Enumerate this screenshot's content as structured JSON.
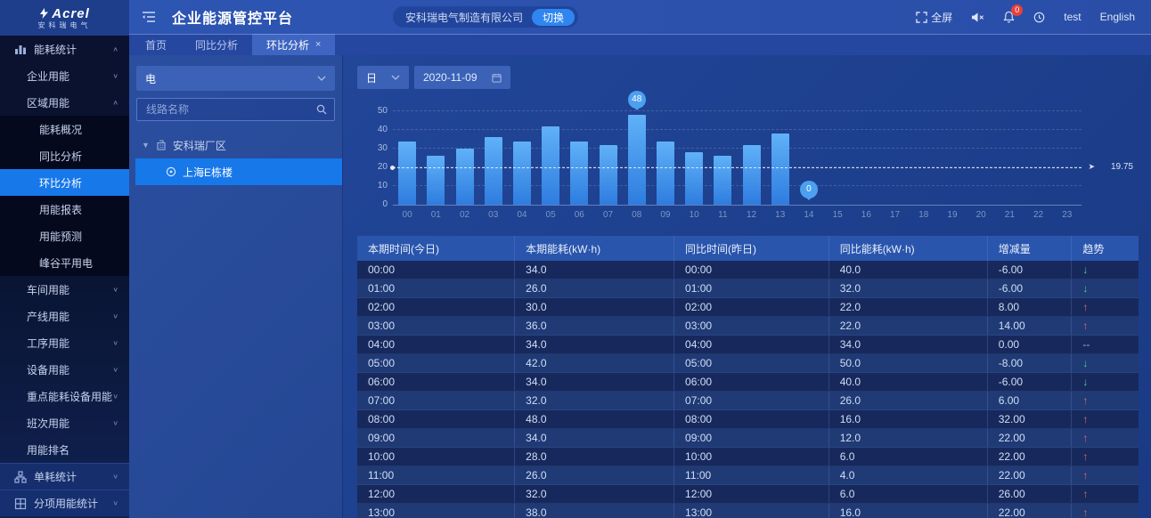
{
  "header": {
    "brand": "Acrel",
    "brand_sub": "安科瑞电气",
    "title": "企业能源管控平台",
    "company": "安科瑞电气制造有限公司",
    "switch_label": "切换",
    "actions": [
      {
        "name": "fullscreen",
        "icon": "fullscreen-icon",
        "label": "全屏"
      },
      {
        "name": "mute",
        "icon": "speaker-muted-icon",
        "label": ""
      },
      {
        "name": "notifications",
        "icon": "bell-icon",
        "label": "",
        "badge": "0"
      },
      {
        "name": "help",
        "icon": "help-icon",
        "label": ""
      },
      {
        "name": "user",
        "icon": "",
        "label": "test"
      },
      {
        "name": "language",
        "icon": "",
        "label": "English"
      }
    ]
  },
  "tabs": [
    {
      "label": "首页",
      "active": false,
      "closable": false
    },
    {
      "label": "同比分析",
      "active": false,
      "closable": false
    },
    {
      "label": "环比分析",
      "active": true,
      "closable": true
    }
  ],
  "sidebar": {
    "items": [
      {
        "label": "能耗统计",
        "level": 1,
        "icon": "bar-chart",
        "caret": "up",
        "active": false
      },
      {
        "label": "企业用能",
        "level": 2,
        "icon": "",
        "caret": "down",
        "active": false
      },
      {
        "label": "区域用能",
        "level": 2,
        "icon": "",
        "caret": "up",
        "active": false
      },
      {
        "label": "能耗概况",
        "level": 3,
        "icon": "",
        "caret": "",
        "active": false
      },
      {
        "label": "同比分析",
        "level": 3,
        "icon": "",
        "caret": "",
        "active": false
      },
      {
        "label": "环比分析",
        "level": 3,
        "icon": "",
        "caret": "",
        "active": true
      },
      {
        "label": "用能报表",
        "level": 3,
        "icon": "",
        "caret": "",
        "active": false
      },
      {
        "label": "用能预测",
        "level": 3,
        "icon": "",
        "caret": "",
        "active": false
      },
      {
        "label": "峰谷平用电",
        "level": 3,
        "icon": "",
        "caret": "",
        "active": false
      },
      {
        "label": "车间用能",
        "level": 2,
        "icon": "",
        "caret": "down",
        "active": false
      },
      {
        "label": "产线用能",
        "level": 2,
        "icon": "",
        "caret": "down",
        "active": false
      },
      {
        "label": "工序用能",
        "level": 2,
        "icon": "",
        "caret": "down",
        "active": false
      },
      {
        "label": "设备用能",
        "level": 2,
        "icon": "",
        "caret": "down",
        "active": false
      },
      {
        "label": "重点能耗设备用能",
        "level": 2,
        "icon": "",
        "caret": "down",
        "active": false
      },
      {
        "label": "班次用能",
        "level": 2,
        "icon": "",
        "caret": "down",
        "active": false
      },
      {
        "label": "用能排名",
        "level": 2,
        "icon": "",
        "caret": "",
        "active": false
      },
      {
        "label": "单耗统计",
        "level": 1,
        "icon": "node",
        "caret": "down",
        "active": false
      },
      {
        "label": "分项用能统计",
        "level": 1,
        "icon": "grid",
        "caret": "down",
        "active": false
      }
    ]
  },
  "filter_panel": {
    "energy_type": "电",
    "search_placeholder": "线路名称",
    "tree_root": "安科瑞厂区",
    "tree_child": "上海E栋楼"
  },
  "toolbar": {
    "period": "日",
    "date": "2020-11-09"
  },
  "chart_data": {
    "type": "bar",
    "title": "",
    "xlabel": "",
    "ylabel": "",
    "categories": [
      "00",
      "01",
      "02",
      "03",
      "04",
      "05",
      "06",
      "07",
      "08",
      "09",
      "10",
      "11",
      "12",
      "13",
      "14",
      "15",
      "16",
      "17",
      "18",
      "19",
      "20",
      "21",
      "22",
      "23"
    ],
    "values": [
      34,
      26,
      30,
      36,
      34,
      42,
      34,
      32,
      48,
      34,
      28,
      26,
      32,
      38,
      0,
      0,
      0,
      0,
      0,
      0,
      0,
      0,
      0,
      0
    ],
    "yticks": [
      0,
      10,
      20,
      30,
      40,
      50
    ],
    "ylim": [
      0,
      55
    ],
    "grid": "dashed",
    "legend_position": "none",
    "average": 19.75,
    "average_label": "19.75",
    "max_marker": {
      "index": 8,
      "label": "48"
    },
    "min_marker": {
      "index": 14,
      "label": "0"
    },
    "bar_color_top": "#60b1f8",
    "bar_color_bottom": "#2e7cdf"
  },
  "table": {
    "columns": [
      "本期时间(今日)",
      "本期能耗(kW·h)",
      "同比时间(昨日)",
      "同比能耗(kW·h)",
      "增减量",
      "趋势"
    ],
    "rows": [
      [
        "00:00",
        "34.0",
        "00:00",
        "40.0",
        "-6.00",
        "down"
      ],
      [
        "01:00",
        "26.0",
        "01:00",
        "32.0",
        "-6.00",
        "down"
      ],
      [
        "02:00",
        "30.0",
        "02:00",
        "22.0",
        "8.00",
        "up"
      ],
      [
        "03:00",
        "36.0",
        "03:00",
        "22.0",
        "14.00",
        "up"
      ],
      [
        "04:00",
        "34.0",
        "04:00",
        "34.0",
        "0.00",
        "flat"
      ],
      [
        "05:00",
        "42.0",
        "05:00",
        "50.0",
        "-8.00",
        "down"
      ],
      [
        "06:00",
        "34.0",
        "06:00",
        "40.0",
        "-6.00",
        "down"
      ],
      [
        "07:00",
        "32.0",
        "07:00",
        "26.0",
        "6.00",
        "up"
      ],
      [
        "08:00",
        "48.0",
        "08:00",
        "16.0",
        "32.00",
        "up"
      ],
      [
        "09:00",
        "34.0",
        "09:00",
        "12.0",
        "22.00",
        "up"
      ],
      [
        "10:00",
        "28.0",
        "10:00",
        "6.0",
        "22.00",
        "up"
      ],
      [
        "11:00",
        "26.0",
        "11:00",
        "4.0",
        "22.00",
        "up"
      ],
      [
        "12:00",
        "32.0",
        "12:00",
        "6.0",
        "26.00",
        "up"
      ],
      [
        "13:00",
        "38.0",
        "13:00",
        "16.0",
        "22.00",
        "up"
      ]
    ]
  },
  "colors": {
    "accent": "#1778ea",
    "header_bar": "#2d55b2",
    "trend_up": "#e06a6a",
    "trend_down": "#5ecb96",
    "badge": "#e5413a"
  }
}
